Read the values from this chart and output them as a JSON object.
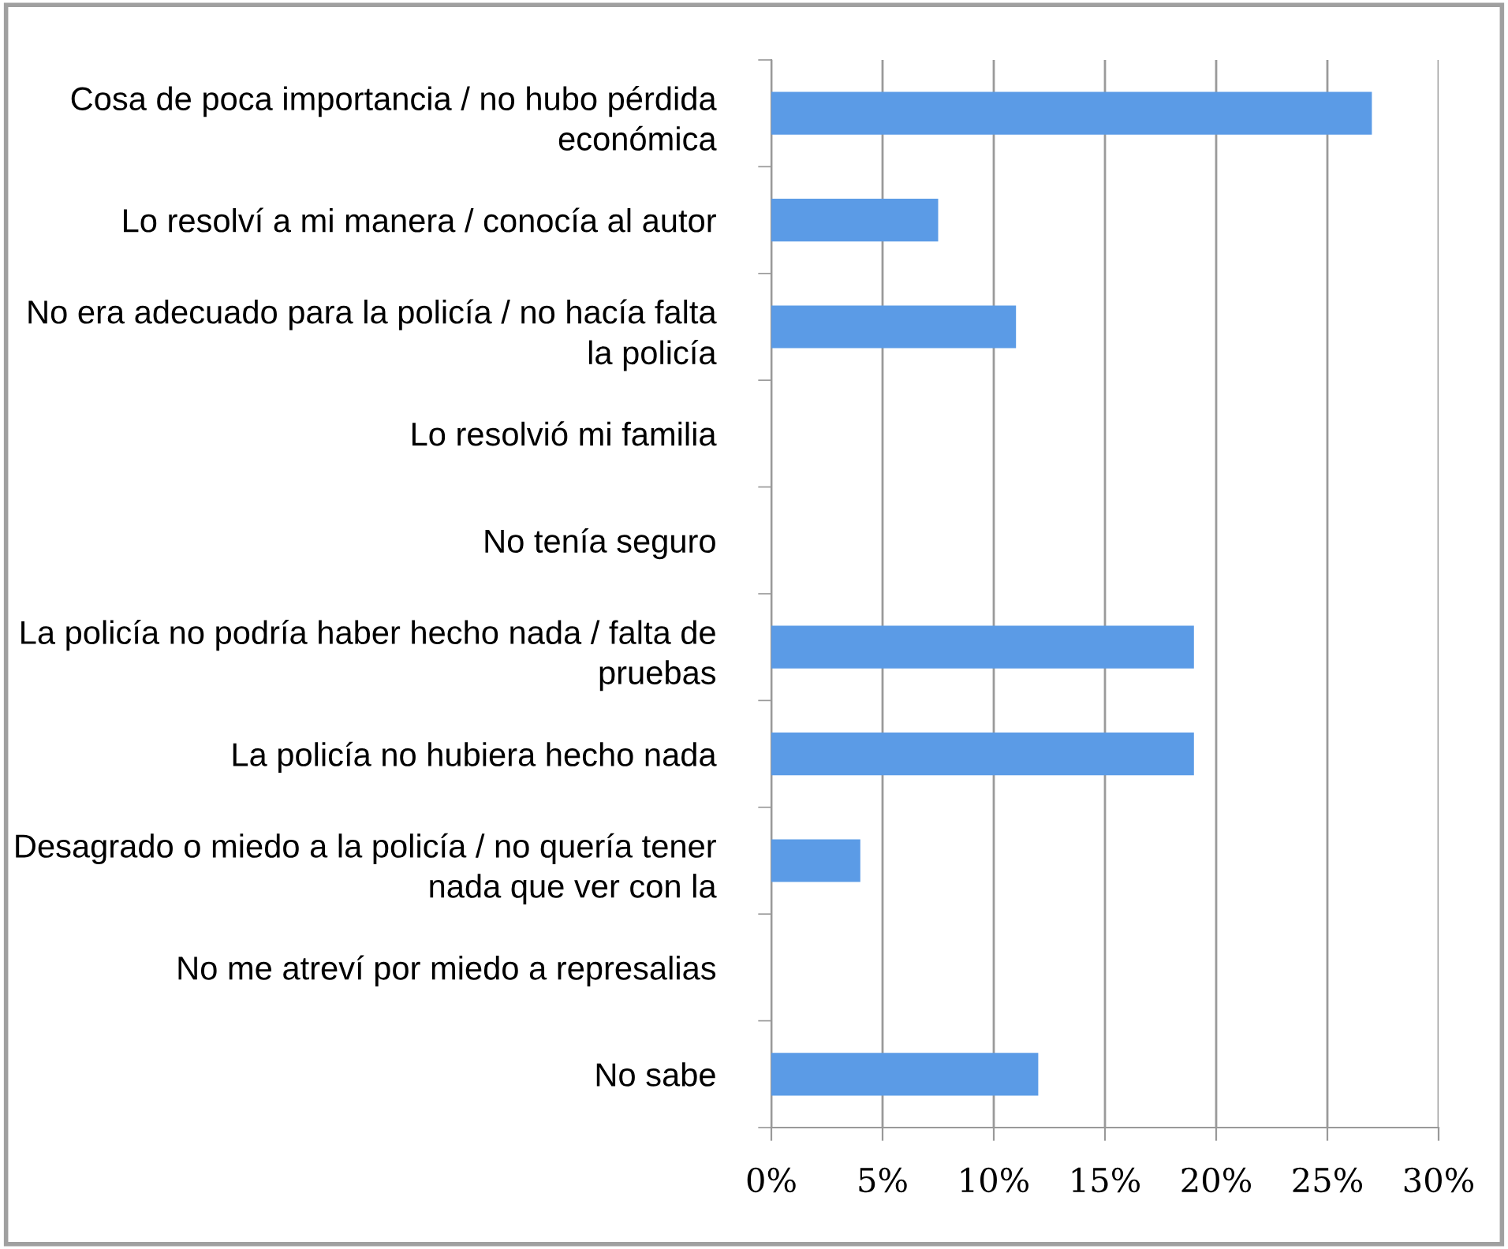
{
  "chart_data": {
    "type": "bar",
    "orientation": "horizontal",
    "categories": [
      "Cosa de poca importancia / no hubo pérdida económica",
      "Lo resolví a mi manera / conocía al autor",
      "No era adecuado para la policía / no hacía falta la policía",
      "Lo resolvió mi familia",
      "No tenía seguro",
      "La policía no podría haber hecho nada / falta de pruebas",
      "La policía no hubiera hecho nada",
      "Desagrado o miedo a la policía / no quería tener nada que ver con la",
      "No me atreví por miedo a represalias",
      "No sabe"
    ],
    "values": [
      27,
      7.5,
      11,
      0,
      0,
      19,
      19,
      4,
      0,
      12
    ],
    "color": "#5b9be6",
    "xlim": [
      0,
      30
    ],
    "xticks": [
      {
        "value": 0,
        "label": "0%"
      },
      {
        "value": 5,
        "label": "5%"
      },
      {
        "value": 10,
        "label": "10%"
      },
      {
        "value": 15,
        "label": "15%"
      },
      {
        "value": 20,
        "label": "20%"
      },
      {
        "value": 25,
        "label": "25%"
      },
      {
        "value": 30,
        "label": "30%"
      }
    ],
    "grid": "x"
  }
}
